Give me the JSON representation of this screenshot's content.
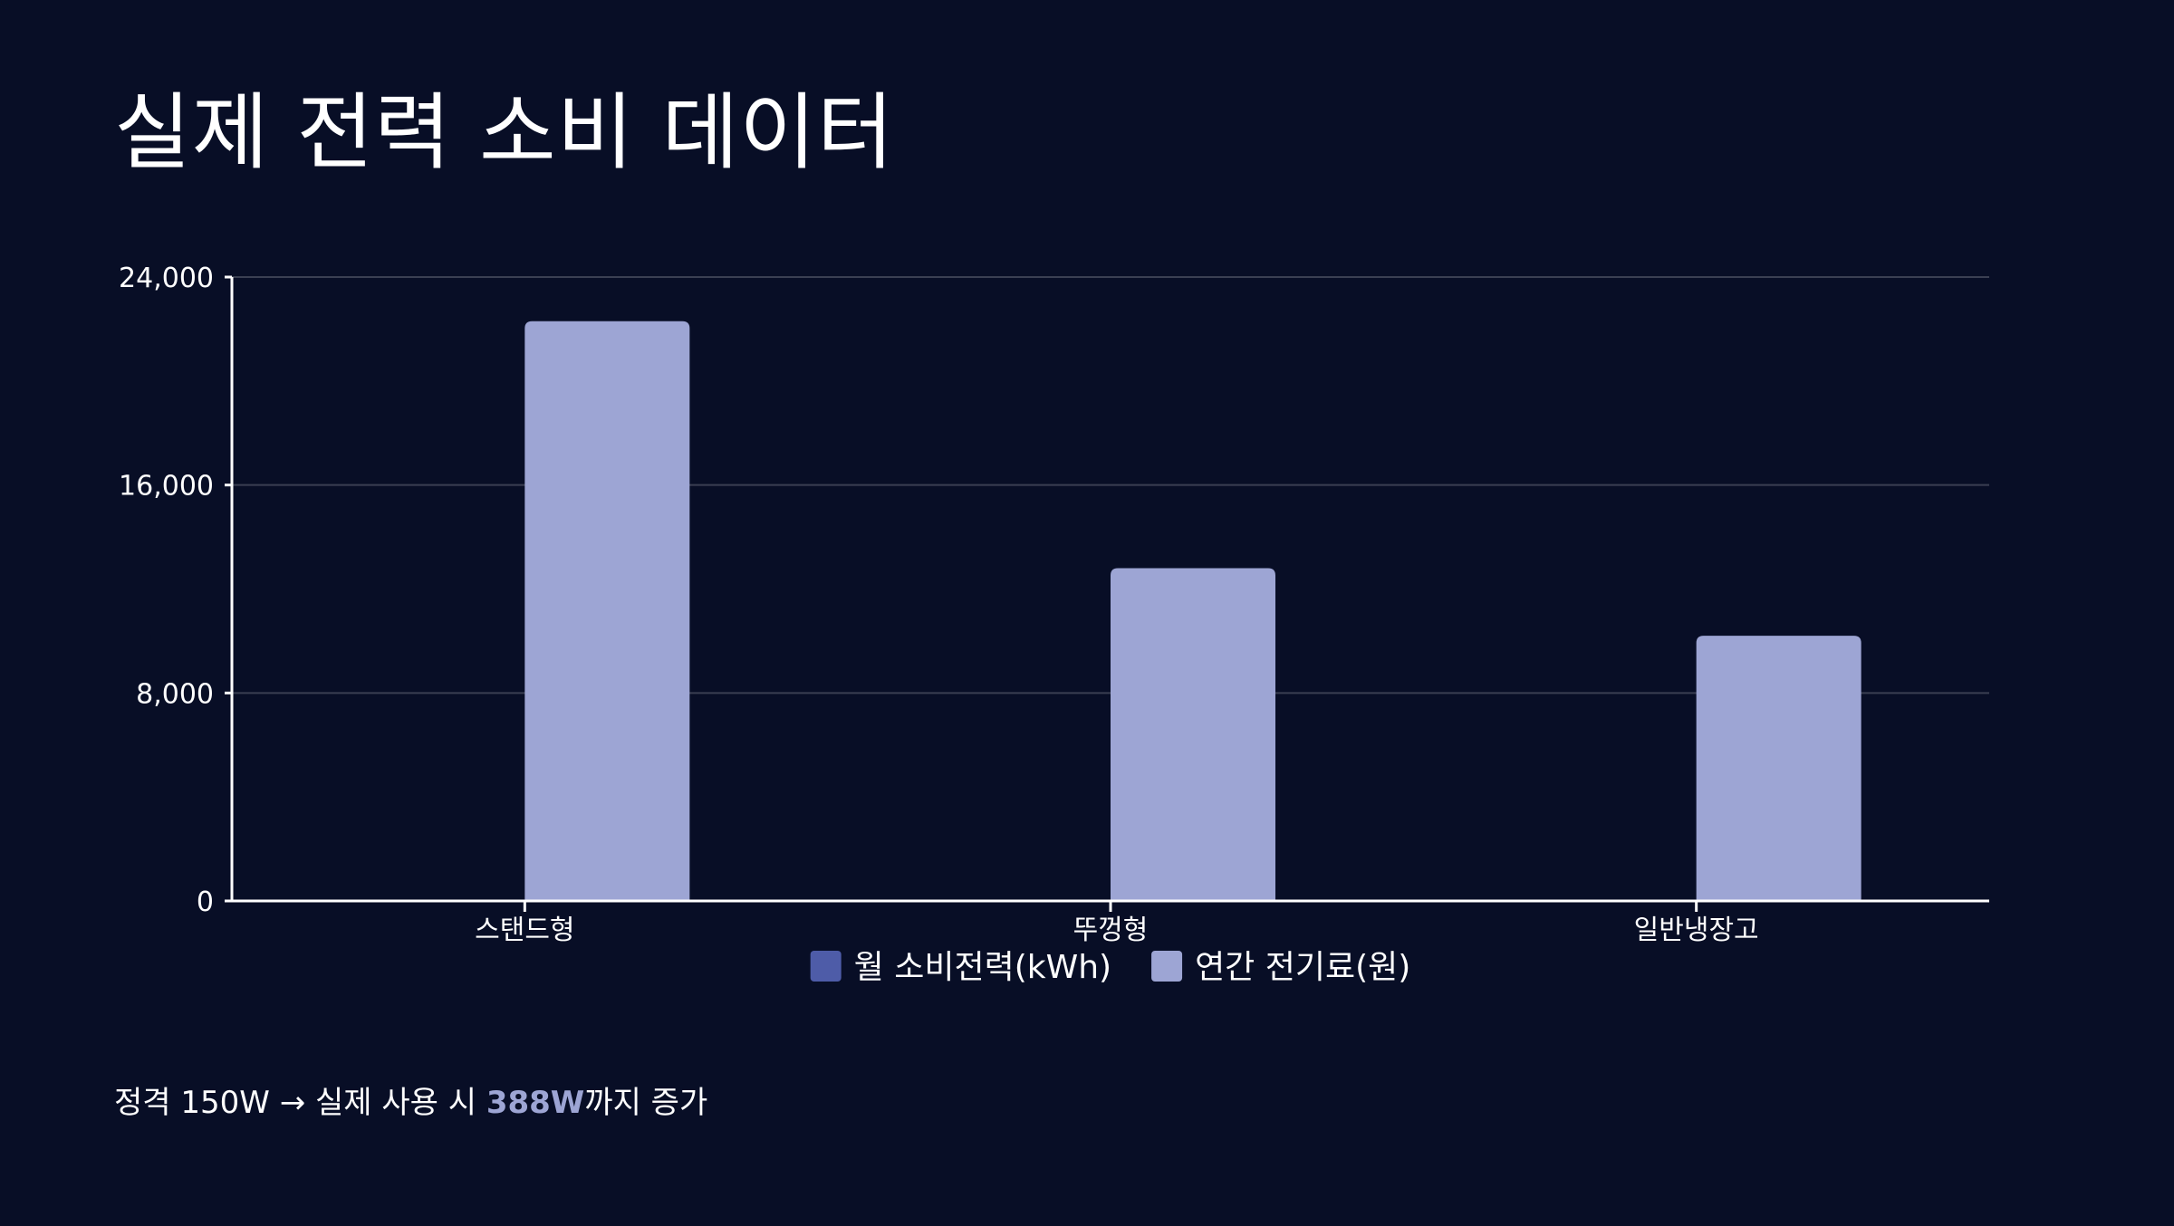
{
  "slide": {
    "title": "실제 전력 소비 데이터"
  },
  "chart_data": {
    "type": "bar",
    "categories": [
      "스탠드형",
      "뚜껑형",
      "일반냉장고"
    ],
    "series": [
      {
        "name": "월 소비전력(kWh)",
        "color": "#4e5ca8",
        "values": [
          null,
          null,
          null
        ]
      },
      {
        "name": "연간 전기료(원)",
        "color": "#9da5d4",
        "values": [
          22300,
          12800,
          10200
        ]
      }
    ],
    "ylim": [
      0,
      24000
    ],
    "yticks": [
      0,
      8000,
      16000,
      24000
    ],
    "ytick_labels": [
      "0",
      "8,000",
      "16,000",
      "24,000"
    ],
    "title": "",
    "xlabel": "",
    "ylabel": "",
    "grid": true,
    "legend_position": "bottom"
  },
  "footnote": {
    "prefix": "정격 150W → 실제 사용 시 ",
    "highlight": "388W",
    "suffix": "까지 증가"
  },
  "colors": {
    "background": "#080e26",
    "gridline": "#3a3f52",
    "axis": "#ffffff",
    "accent": "#9da5d4"
  }
}
